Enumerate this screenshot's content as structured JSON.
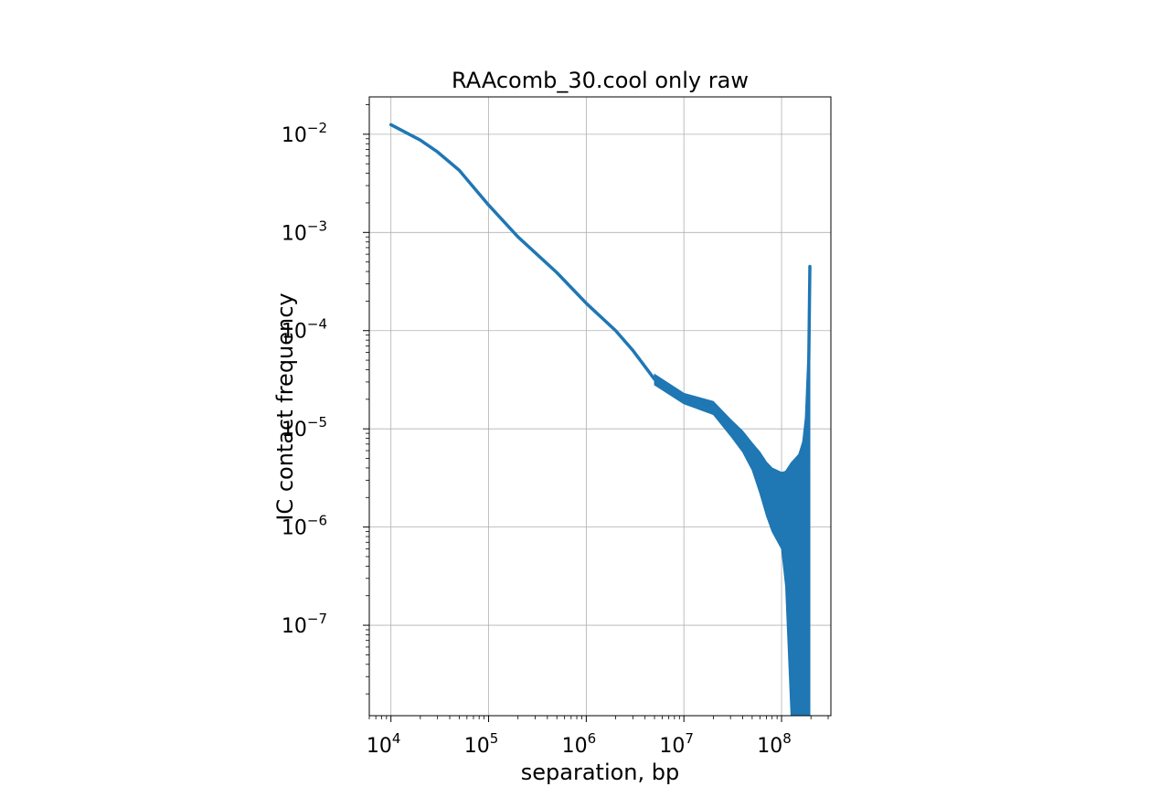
{
  "chart_data": {
    "type": "line",
    "title": "RAAcomb_30.cool only raw",
    "xlabel": "separation, bp",
    "ylabel": "IC contact frequency",
    "xscale": "log",
    "yscale": "log",
    "xlim": [
      6000,
      320000000
    ],
    "ylim": [
      1.2e-08,
      0.024
    ],
    "grid": true,
    "legend": "none",
    "x_ticks": [
      {
        "value": 10000,
        "base": "10",
        "exp": "4"
      },
      {
        "value": 100000,
        "base": "10",
        "exp": "5"
      },
      {
        "value": 1000000,
        "base": "10",
        "exp": "6"
      },
      {
        "value": 10000000,
        "base": "10",
        "exp": "7"
      },
      {
        "value": 100000000,
        "base": "10",
        "exp": "8"
      }
    ],
    "y_ticks": [
      {
        "value": 0.01,
        "base": "10",
        "exp": "−2"
      },
      {
        "value": 0.001,
        "base": "10",
        "exp": "−3"
      },
      {
        "value": 0.0001,
        "base": "10",
        "exp": "−4"
      },
      {
        "value": 1e-05,
        "base": "10",
        "exp": "−5"
      },
      {
        "value": 1e-06,
        "base": "10",
        "exp": "−6"
      },
      {
        "value": 1e-07,
        "base": "10",
        "exp": "−7"
      }
    ],
    "series": [
      {
        "color": "#1f77b4",
        "points": [
          {
            "x": 10000,
            "y": 0.0125
          },
          {
            "x": 20000,
            "y": 0.0087
          },
          {
            "x": 30000,
            "y": 0.0066
          },
          {
            "x": 50000,
            "y": 0.0043
          },
          {
            "x": 100000,
            "y": 0.0019
          },
          {
            "x": 200000,
            "y": 0.0009
          },
          {
            "x": 500000,
            "y": 0.00039
          },
          {
            "x": 1000000,
            "y": 0.00019
          },
          {
            "x": 2000000,
            "y": 0.0001
          },
          {
            "x": 3000000,
            "y": 6.3e-05
          },
          {
            "x": 5000000,
            "y": 3.2e-05
          },
          {
            "x": 7000000,
            "y": 2.4e-05
          },
          {
            "x": 10000000,
            "y": 2e-05
          },
          {
            "x": 15000000,
            "y": 1.88e-05
          },
          {
            "x": 20000000,
            "y": 1.65e-05
          },
          {
            "x": 30000000,
            "y": 1.05e-05
          },
          {
            "x": 50000000,
            "y": 5.5e-06
          },
          {
            "x": 70000000,
            "y": 3.8e-06
          },
          {
            "x": 100000000,
            "y": 3e-06
          },
          {
            "x": 130000000,
            "y": 3.2e-06
          },
          {
            "x": 160000000,
            "y": 4.5e-06
          },
          {
            "x": 180000000,
            "y": 1.3e-05
          },
          {
            "x": 190000000,
            "y": 5e-05
          },
          {
            "x": 195000000,
            "y": 0.00045
          }
        ],
        "noise_band": [
          {
            "x": 5000000,
            "lo": 2.8e-05,
            "hi": 3.6e-05
          },
          {
            "x": 10000000,
            "lo": 1.8e-05,
            "hi": 2.3e-05
          },
          {
            "x": 20000000,
            "lo": 1.4e-05,
            "hi": 1.9e-05
          },
          {
            "x": 30000000,
            "lo": 8.5e-06,
            "hi": 1.25e-05
          },
          {
            "x": 40000000,
            "lo": 5.8e-06,
            "hi": 9.5e-06
          },
          {
            "x": 50000000,
            "lo": 3.8e-06,
            "hi": 7.2e-06
          },
          {
            "x": 60000000,
            "lo": 2.2e-06,
            "hi": 5.8e-06
          },
          {
            "x": 70000000,
            "lo": 1.3e-06,
            "hi": 4.6e-06
          },
          {
            "x": 80000000,
            "lo": 9e-07,
            "hi": 4e-06
          },
          {
            "x": 100000000,
            "lo": 6e-07,
            "hi": 3.6e-06
          },
          {
            "x": 110000000,
            "lo": 2.5e-07,
            "hi": 3.7e-06
          },
          {
            "x": 125000000,
            "lo": 1.2e-08,
            "hi": 4.5e-06
          },
          {
            "x": 150000000,
            "lo": 1.2e-08,
            "hi": 5.5e-06
          },
          {
            "x": 175000000,
            "lo": 1.2e-08,
            "hi": 9e-06
          },
          {
            "x": 185000000,
            "lo": 1.2e-08,
            "hi": 3.5e-05
          },
          {
            "x": 195000000,
            "lo": 1.2e-08,
            "hi": 0.00045
          }
        ]
      }
    ]
  }
}
